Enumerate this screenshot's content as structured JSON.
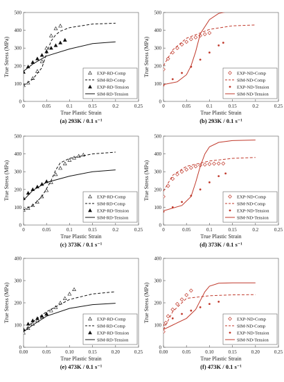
{
  "chart_data": [
    {
      "id": "a",
      "type": "scatter",
      "caption": "(a) 293K / 0.1 s⁻¹",
      "xlabel": "True Plastic Strain",
      "ylabel": "True Stress (MPa)",
      "xlim": [
        0,
        0.25
      ],
      "ylim": [
        0,
        500
      ],
      "xticks": [
        "0",
        "0.05",
        "0.1",
        "0.15",
        "0.2",
        "0.25"
      ],
      "yticks": [
        "0",
        "100",
        "200",
        "300",
        "400",
        "500"
      ],
      "color": "#111111",
      "series": [
        {
          "name": "EXP-RD-Comp",
          "style": "tri-open",
          "x": [
            0,
            0.01,
            0.02,
            0.03,
            0.04,
            0.05,
            0.06,
            0.07,
            0.08
          ],
          "y": [
            90,
            105,
            130,
            170,
            225,
            300,
            370,
            410,
            425
          ]
        },
        {
          "name": "SIM-RD-Comp",
          "style": "dash",
          "x": [
            0,
            0.02,
            0.04,
            0.05,
            0.06,
            0.07,
            0.08,
            0.1,
            0.15,
            0.2
          ],
          "y": [
            90,
            125,
            190,
            270,
            340,
            375,
            395,
            415,
            435,
            440
          ]
        },
        {
          "name": "EXP-RD-Tension",
          "style": "tri-filled",
          "x": [
            0,
            0.01,
            0.02,
            0.03,
            0.04,
            0.05,
            0.06,
            0.07,
            0.08,
            0.09
          ],
          "y": [
            165,
            195,
            220,
            240,
            260,
            280,
            300,
            315,
            330,
            345
          ]
        },
        {
          "name": "SIM-RD-Tension",
          "style": "solid",
          "x": [
            0,
            0.02,
            0.05,
            0.1,
            0.15,
            0.2
          ],
          "y": [
            170,
            210,
            255,
            295,
            325,
            335
          ]
        }
      ]
    },
    {
      "id": "b",
      "type": "scatter",
      "caption": "(b) 293K / 0.1 s⁻¹",
      "xlabel": "True Plastic Strain",
      "ylabel": "True Stress (MPa)",
      "xlim": [
        0,
        0.25
      ],
      "ylim": [
        0,
        500
      ],
      "xticks": [
        "0",
        "0.05",
        "0.1",
        "0.15",
        "0.2",
        "0.25"
      ],
      "yticks": [
        "0",
        "100",
        "200",
        "300",
        "400",
        "500"
      ],
      "color": "#c0392b",
      "series": [
        {
          "name": "EXP-ND-Comp",
          "style": "diamond-open",
          "x": [
            0,
            0.01,
            0.02,
            0.03,
            0.04,
            0.05,
            0.06,
            0.07,
            0.08,
            0.09,
            0.1
          ],
          "y": [
            180,
            240,
            275,
            300,
            320,
            335,
            350,
            360,
            370,
            378,
            385
          ]
        },
        {
          "name": "SIM-ND-Comp",
          "style": "dash",
          "x": [
            0,
            0.02,
            0.05,
            0.1,
            0.15,
            0.2
          ],
          "y": [
            200,
            290,
            355,
            405,
            425,
            430
          ]
        },
        {
          "name": "EXP-ND-Tension",
          "style": "dot-filled",
          "x": [
            0,
            0.02,
            0.04,
            0.06,
            0.08,
            0.1,
            0.12,
            0.13
          ],
          "y": [
            90,
            125,
            160,
            195,
            235,
            275,
            315,
            330
          ]
        },
        {
          "name": "SIM-ND-Tension",
          "style": "solid",
          "x": [
            0,
            0.03,
            0.05,
            0.06,
            0.07,
            0.08,
            0.1,
            0.12,
            0.15,
            0.2
          ],
          "y": [
            95,
            110,
            150,
            200,
            280,
            380,
            460,
            495,
            510,
            512
          ]
        }
      ]
    },
    {
      "id": "c",
      "type": "scatter",
      "caption": "(c) 373K / 0.1 s⁻¹",
      "xlabel": "True Plastic Strain",
      "ylabel": "True Stress (MPa)",
      "xlim": [
        0,
        0.25
      ],
      "ylim": [
        0,
        500
      ],
      "xticks": [
        "0",
        "0.05",
        "0.1",
        "0.15",
        "0.2",
        "0.25"
      ],
      "yticks": [
        "0",
        "100",
        "200",
        "300",
        "400",
        "500"
      ],
      "color": "#111111",
      "series": [
        {
          "name": "EXP-RD-Comp",
          "style": "tri-open",
          "x": [
            0,
            0.01,
            0.02,
            0.03,
            0.04,
            0.05,
            0.06,
            0.07,
            0.08,
            0.09,
            0.1,
            0.11,
            0.12,
            0.13
          ],
          "y": [
            85,
            95,
            110,
            130,
            160,
            195,
            240,
            285,
            320,
            345,
            365,
            378,
            388,
            395
          ]
        },
        {
          "name": "SIM-RD-Comp",
          "style": "dash",
          "x": [
            0,
            0.02,
            0.04,
            0.06,
            0.07,
            0.08,
            0.1,
            0.15,
            0.2
          ],
          "y": [
            85,
            110,
            160,
            250,
            310,
            350,
            375,
            400,
            410
          ]
        },
        {
          "name": "EXP-RD-Tension",
          "style": "tri-filled",
          "x": [
            0,
            0.01,
            0.02,
            0.03,
            0.04,
            0.05
          ],
          "y": [
            150,
            180,
            200,
            215,
            230,
            245
          ]
        },
        {
          "name": "SIM-RD-Tension",
          "style": "solid",
          "x": [
            0,
            0.02,
            0.05,
            0.1,
            0.15,
            0.2
          ],
          "y": [
            140,
            195,
            240,
            275,
            300,
            310
          ]
        }
      ]
    },
    {
      "id": "d",
      "type": "scatter",
      "caption": "(d) 373K / 0.1 s⁻¹",
      "xlabel": "True Plastic Strain",
      "ylabel": "True Stress (MPa)",
      "xlim": [
        0,
        0.25
      ],
      "ylim": [
        0,
        500
      ],
      "xticks": [
        "0",
        "0.05",
        "0.1",
        "0.15",
        "0.2",
        "0.25"
      ],
      "yticks": [
        "0",
        "100",
        "200",
        "300",
        "400",
        "500"
      ],
      "color": "#c0392b",
      "series": [
        {
          "name": "EXP-ND-Comp",
          "style": "diamond-open",
          "x": [
            0,
            0.01,
            0.02,
            0.03,
            0.04,
            0.05,
            0.06,
            0.07,
            0.08,
            0.09,
            0.1,
            0.11,
            0.12,
            0.13
          ],
          "y": [
            160,
            220,
            260,
            285,
            300,
            312,
            322,
            330,
            336,
            340,
            343,
            345,
            346,
            346
          ]
        },
        {
          "name": "SIM-ND-Comp",
          "style": "dash",
          "x": [
            0,
            0.02,
            0.05,
            0.1,
            0.15,
            0.2
          ],
          "y": [
            190,
            280,
            330,
            360,
            375,
            380
          ]
        },
        {
          "name": "EXP-ND-Tension",
          "style": "dot-filled",
          "x": [
            0,
            0.02,
            0.04,
            0.06,
            0.08,
            0.1,
            0.12,
            0.135
          ],
          "y": [
            75,
            100,
            130,
            165,
            200,
            240,
            275,
            290
          ]
        },
        {
          "name": "SIM-ND-Tension",
          "style": "solid",
          "x": [
            0,
            0.04,
            0.06,
            0.07,
            0.08,
            0.09,
            0.1,
            0.12,
            0.15,
            0.2
          ],
          "y": [
            80,
            110,
            160,
            240,
            330,
            400,
            440,
            465,
            475,
            478
          ]
        }
      ]
    },
    {
      "id": "e",
      "type": "scatter",
      "caption": "(e) 473K / 0.1 s⁻¹",
      "xlabel": "True Plastic Strain",
      "ylabel": "True Stress (MPa)",
      "xlim": [
        0,
        0.25
      ],
      "ylim": [
        0,
        400
      ],
      "xticks": [
        "0.00",
        "0.05",
        "0.10",
        "0.15",
        "0.20",
        "0.25"
      ],
      "yticks": [
        "0",
        "100",
        "200",
        "300",
        "400"
      ],
      "color": "#111111",
      "series": [
        {
          "name": "EXP-RD-Comp",
          "style": "tri-open",
          "x": [
            0,
            0.01,
            0.02,
            0.03,
            0.04,
            0.05,
            0.06,
            0.07,
            0.08,
            0.09,
            0.1,
            0.11
          ],
          "y": [
            65,
            85,
            105,
            120,
            135,
            150,
            165,
            180,
            200,
            220,
            240,
            260
          ]
        },
        {
          "name": "SIM-RD-Comp",
          "style": "dash",
          "x": [
            0,
            0.02,
            0.05,
            0.1,
            0.15,
            0.2
          ],
          "y": [
            70,
            115,
            160,
            215,
            240,
            250
          ]
        },
        {
          "name": "EXP-RD-Tension",
          "style": "tri-filled",
          "x": [
            0,
            0.01,
            0.02,
            0.03,
            0.04,
            0.05
          ],
          "y": [
            80,
            105,
            120,
            130,
            140,
            150
          ]
        },
        {
          "name": "SIM-RD-Tension",
          "style": "solid",
          "x": [
            0,
            0.02,
            0.05,
            0.1,
            0.15,
            0.2
          ],
          "y": [
            70,
            100,
            140,
            175,
            192,
            198
          ]
        }
      ]
    },
    {
      "id": "f",
      "type": "scatter",
      "caption": "(f) 473K / 0.1 s⁻¹",
      "xlabel": "True Plastic Strain",
      "ylabel": "True Stress (MPa)",
      "xlim": [
        0,
        0.25
      ],
      "ylim": [
        0,
        400
      ],
      "xticks": [
        "0.00",
        "0.05",
        "0.10",
        "0.15",
        "0.20",
        "0.25"
      ],
      "yticks": [
        "0",
        "100",
        "200",
        "300",
        "400"
      ],
      "color": "#c0392b",
      "series": [
        {
          "name": "EXP-ND-Comp",
          "style": "diamond-open",
          "x": [
            0,
            0.005,
            0.01,
            0.02,
            0.03,
            0.04,
            0.05,
            0.06
          ],
          "y": [
            70,
            110,
            140,
            170,
            195,
            215,
            235,
            255
          ]
        },
        {
          "name": "SIM-ND-Comp",
          "style": "dash",
          "x": [
            0,
            0.02,
            0.05,
            0.1,
            0.15,
            0.2
          ],
          "y": [
            80,
            160,
            220,
            232,
            236,
            237
          ]
        },
        {
          "name": "EXP-ND-Tension",
          "style": "dot-filled",
          "x": [
            0,
            0.02,
            0.04,
            0.06,
            0.08,
            0.1,
            0.12
          ],
          "y": [
            100,
            130,
            150,
            165,
            180,
            195,
            205
          ]
        },
        {
          "name": "SIM-ND-Tension",
          "style": "solid",
          "x": [
            0,
            0.02,
            0.05,
            0.07,
            0.08,
            0.09,
            0.1,
            0.12,
            0.15,
            0.2
          ],
          "y": [
            80,
            100,
            130,
            170,
            210,
            250,
            275,
            288,
            290,
            290
          ]
        }
      ]
    }
  ]
}
